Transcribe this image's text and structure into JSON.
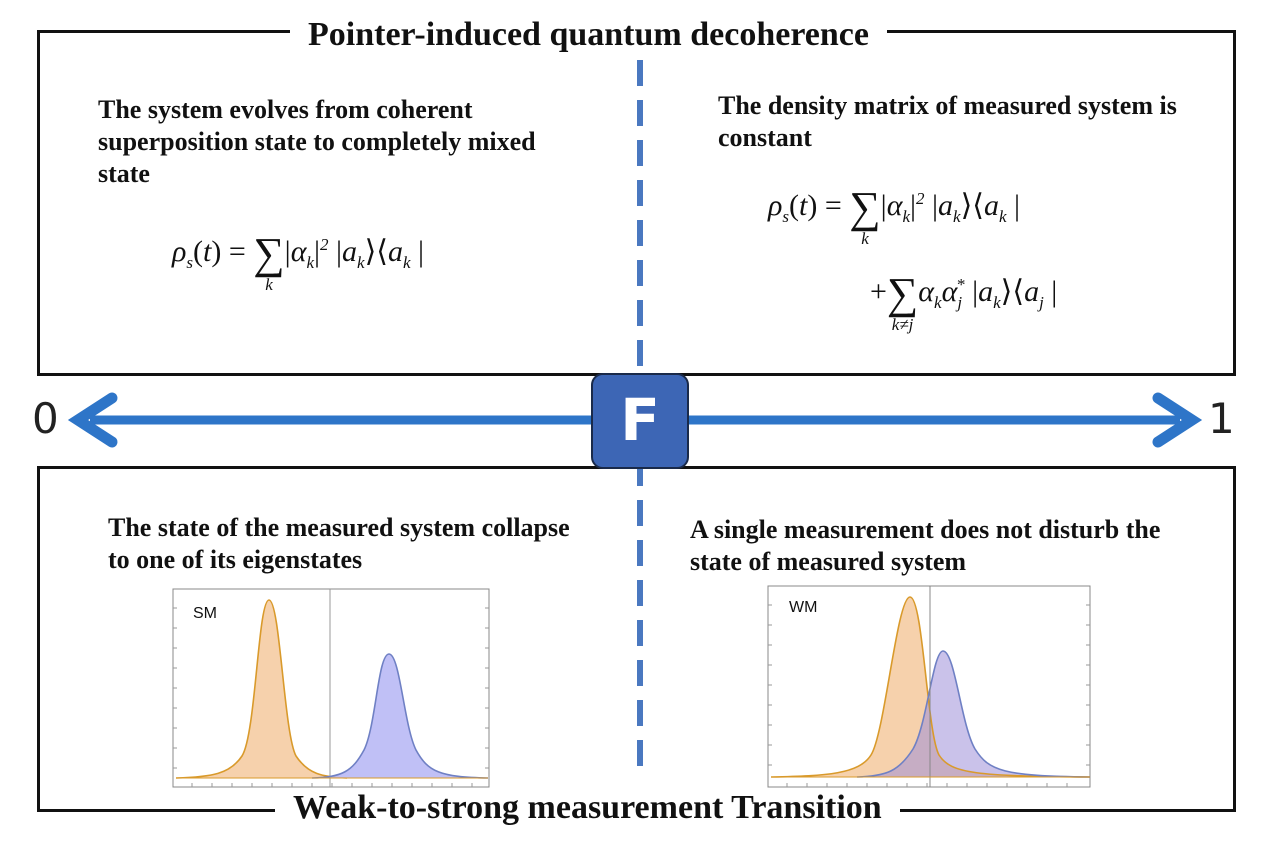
{
  "top": {
    "title": "Pointer-induced quantum decoherence",
    "left_text": "The system  evolves from coherent superposition state to completely mixed state",
    "right_text": "The density matrix of measured system is constant"
  },
  "axis": {
    "left_label": "0",
    "right_label": "1",
    "center_label": "F",
    "color": "#2e75c8"
  },
  "bottom": {
    "title": "Weak-to-strong measurement Transition",
    "left_text": "The state of the measured system collapse to one of its eigenstates",
    "right_text": "A single measurement does not disturb the state of measured system",
    "left_plot_label": "SM",
    "right_plot_label": "WM"
  },
  "colors": {
    "orange": "#f5c99e",
    "orange_line": "#d99a2b",
    "blue": "#b9b9f5",
    "blue_line": "#6f80c4",
    "divider": "#4a78c0"
  }
}
